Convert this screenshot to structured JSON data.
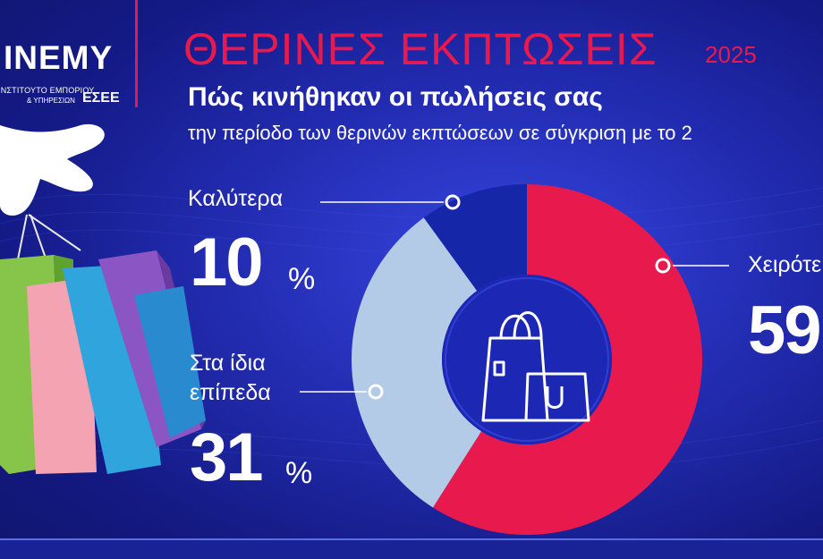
{
  "logo": {
    "name": "ΙΝΕΜΥ",
    "line1": "ΙΝΣΤΙΤΟΥΤΟ ΕΜΠΟΡΙΟΥ",
    "line2": "& ΥΠΗΡΕΣΙΩΝ",
    "esee": "ΕΣΕΕ"
  },
  "header": {
    "year": "2025"
  },
  "labels": {
    "same_line1": "Στα ίδια",
    "same_line2": "επίπεδα",
    "worse_visible": "Χειρότε",
    "worse_value_visible": "59"
  },
  "colors": {
    "worse": "#e8194d",
    "same": "#b3cbe6",
    "better": "#1626a8",
    "title": "#e8194d",
    "background": "#1b23a3"
  },
  "icons": [
    "shopping-bag-icon",
    "shopping-bags-illustration"
  ],
  "chart_data": {
    "type": "pie",
    "title": "ΘΕΡΙΝΕΣ ΕΚΠΤΩΣΕΙΣ",
    "subtitle": "Πώς κινήθηκαν οι πωλήσεις σας",
    "subtitle2": "την περίοδο των θερινών εκπτώσεων σε σύγκριση με το 2",
    "categories": [
      "Καλύτερα",
      "Στα ίδια επίπεδα",
      "Χειρότερα"
    ],
    "values": [
      10,
      31,
      59
    ],
    "value_labels": [
      "10",
      "31",
      "59"
    ],
    "unit": "%",
    "donut": true
  }
}
